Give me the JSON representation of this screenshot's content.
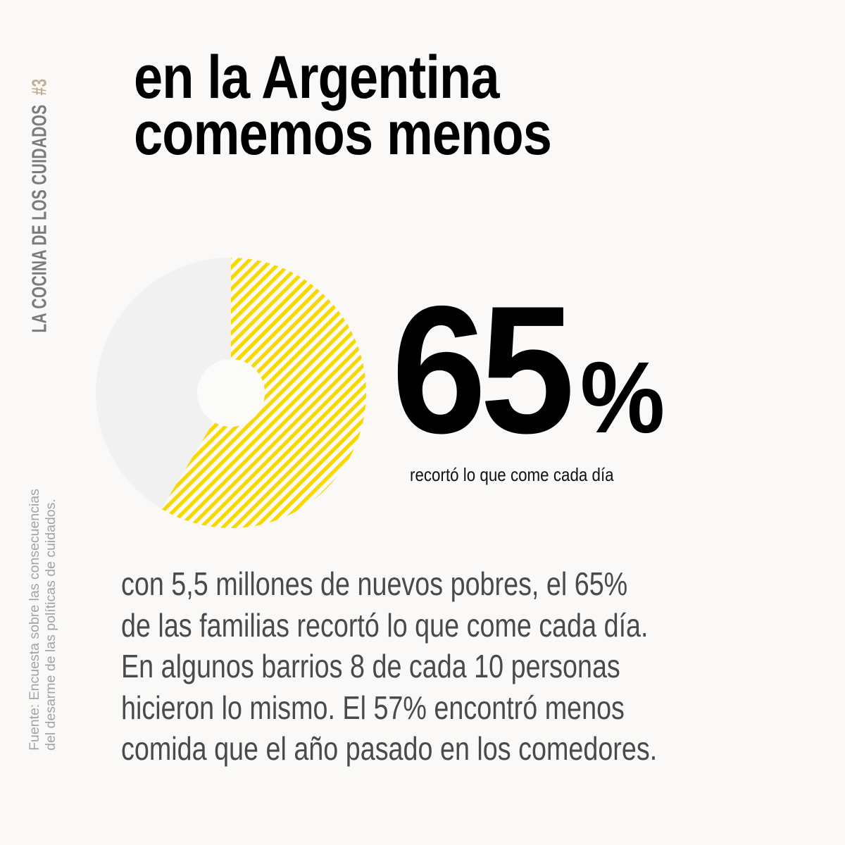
{
  "series_label": {
    "text": "LA COCINA DE LOS CUIDADOS",
    "number": "#3"
  },
  "title": {
    "line1": "en la Argentina",
    "line2": "comemos menos"
  },
  "highlight": {
    "value": "65",
    "unit": "%",
    "caption": "recortó lo que come cada día"
  },
  "body": {
    "lines": [
      "con 5,5 millones de nuevos pobres, el 65%",
      "de las familias recortó lo que come cada día.",
      "En algunos barrios 8 de cada 10 personas",
      "hicieron lo mismo. El 57% encontró menos",
      "comida que el año pasado en los comedores."
    ]
  },
  "source": {
    "line1": "Fuente: Encuesta sobre las consecuencias",
    "line2": "del desarme de las políticas de cuidados."
  },
  "colors": {
    "background": "#FAF9F7",
    "accent_yellow": "#F7D900",
    "pie_gray": "#F1F1F2",
    "tag_number": "#C4AE93",
    "tag_text": "#7B7B7B",
    "body_text": "#4A4A4A"
  },
  "chart_data": {
    "type": "pie",
    "title": "en la Argentina comemos menos",
    "categories": [
      "recortó lo que come cada día",
      "resto"
    ],
    "values": [
      65,
      35
    ],
    "labels": [
      "65%",
      ""
    ],
    "styles": [
      "yellow diagonal stripes",
      "light gray solid"
    ],
    "donut_hole": true,
    "annotation": "65% recortó lo que come cada día"
  }
}
